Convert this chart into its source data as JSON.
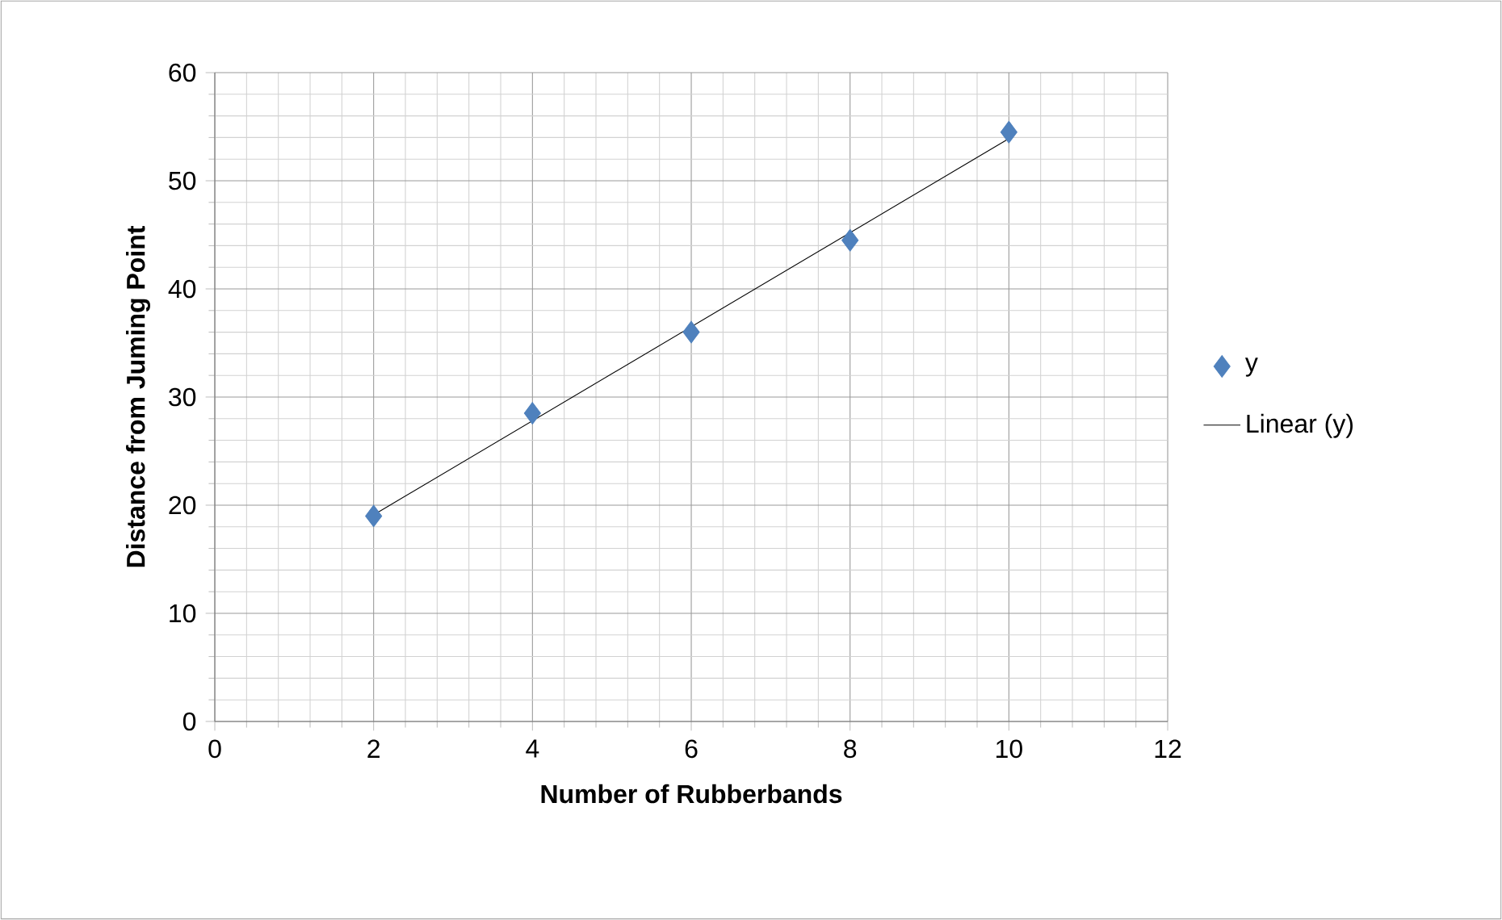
{
  "chart_data": {
    "type": "scatter",
    "xlabel": "Number of Rubberbands",
    "ylabel": "Distance from Juming Point",
    "x": [
      2,
      4,
      6,
      8,
      10
    ],
    "series": [
      {
        "name": "y",
        "color": "#4f81bd",
        "marker": "diamond",
        "values": [
          19,
          28.5,
          36,
          44.5,
          54.5
        ]
      },
      {
        "name": "Linear (y)",
        "type": "line",
        "color": "#000000",
        "marker": "none",
        "x": [
          2,
          10
        ],
        "values": [
          19.1,
          53.9
        ]
      }
    ],
    "xlim": [
      0,
      12
    ],
    "xticks": [
      0,
      2,
      4,
      6,
      8,
      10,
      12
    ],
    "ylim": [
      0,
      60
    ],
    "yticks": [
      0,
      10,
      20,
      30,
      40,
      50,
      60
    ],
    "grid": true,
    "legend": "right"
  }
}
